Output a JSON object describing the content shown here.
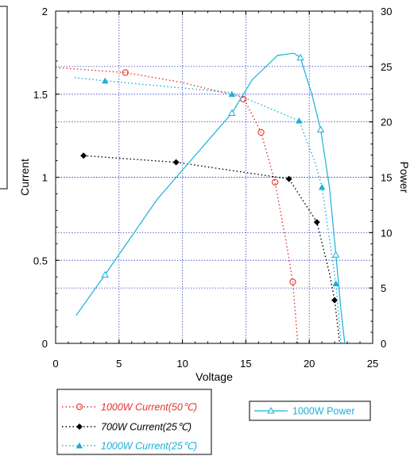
{
  "chart_data": {
    "type": "line",
    "xlabel": "Voltage",
    "ylabel_left": "Current",
    "ylabel_right": "Power",
    "xlim": [
      0,
      25
    ],
    "ylim_left": [
      0,
      2
    ],
    "ylim_right": [
      0,
      30
    ],
    "x_ticks": [
      "0",
      "5",
      "10",
      "15",
      "20",
      "25"
    ],
    "y_left_ticks": [
      "0",
      "0.5",
      "1",
      "1.5",
      "2"
    ],
    "y_right_ticks": [
      "0",
      "5",
      "10",
      "15",
      "20",
      "25",
      "30"
    ],
    "grid": true,
    "series": [
      {
        "name": "1000W Current(50℃)",
        "axis": "left",
        "color": "#e8322e",
        "marker": "circle",
        "line": "dotted",
        "x": [
          0,
          5.5,
          10,
          14.8,
          16.2,
          17.3,
          18.2,
          18.7,
          19.1
        ],
        "y": [
          1.66,
          1.63,
          1.57,
          1.48,
          1.27,
          0.97,
          0.6,
          0.37,
          0
        ],
        "marker_x": [
          5.5,
          14.8,
          16.2,
          17.3,
          18.7
        ],
        "marker_y": [
          1.63,
          1.47,
          1.27,
          0.97,
          0.37
        ]
      },
      {
        "name": "700W   Current(25℃)",
        "axis": "left",
        "color": "#000000",
        "marker": "diamond",
        "line": "dotted",
        "x": [
          2.2,
          9.5,
          18.4,
          19.5,
          20.6,
          21.6,
          22.0,
          22.4
        ],
        "y": [
          1.13,
          1.09,
          0.99,
          0.86,
          0.73,
          0.42,
          0.26,
          0
        ],
        "marker_x": [
          2.2,
          9.5,
          18.4,
          20.6,
          22.0
        ],
        "marker_y": [
          1.13,
          1.09,
          0.99,
          0.73,
          0.26
        ]
      },
      {
        "name": "1000W Current(25℃)",
        "axis": "left",
        "color": "#1ab0d9",
        "marker": "triangle",
        "line": "dotted",
        "x": [
          1.5,
          3.9,
          13.9,
          19.2,
          20.5,
          21.0,
          22.1,
          22.5
        ],
        "y": [
          1.6,
          1.58,
          1.51,
          1.34,
          1.08,
          0.94,
          0.36,
          0
        ],
        "marker_x": [
          3.9,
          13.9,
          19.2,
          21.0,
          22.1
        ],
        "marker_y": [
          1.58,
          1.5,
          1.34,
          0.94,
          0.36
        ]
      },
      {
        "name": "1000W Power",
        "axis": "right",
        "color": "#1ab0d9",
        "marker": "triangle-open",
        "line": "solid",
        "x": [
          1.6,
          3.9,
          8.0,
          13.9,
          15.5,
          17.5,
          18.8,
          19.3,
          20.2,
          20.9,
          21.6,
          22.1,
          22.5,
          22.8
        ],
        "y": [
          2.5,
          6.2,
          13.0,
          20.8,
          23.8,
          26.0,
          26.2,
          25.8,
          22.5,
          19.3,
          14.0,
          8.0,
          3.0,
          0
        ],
        "marker_x": [
          3.9,
          13.9,
          19.3,
          20.9,
          22.1
        ],
        "marker_y": [
          6.2,
          20.8,
          25.8,
          19.3,
          8.0
        ]
      }
    ]
  }
}
